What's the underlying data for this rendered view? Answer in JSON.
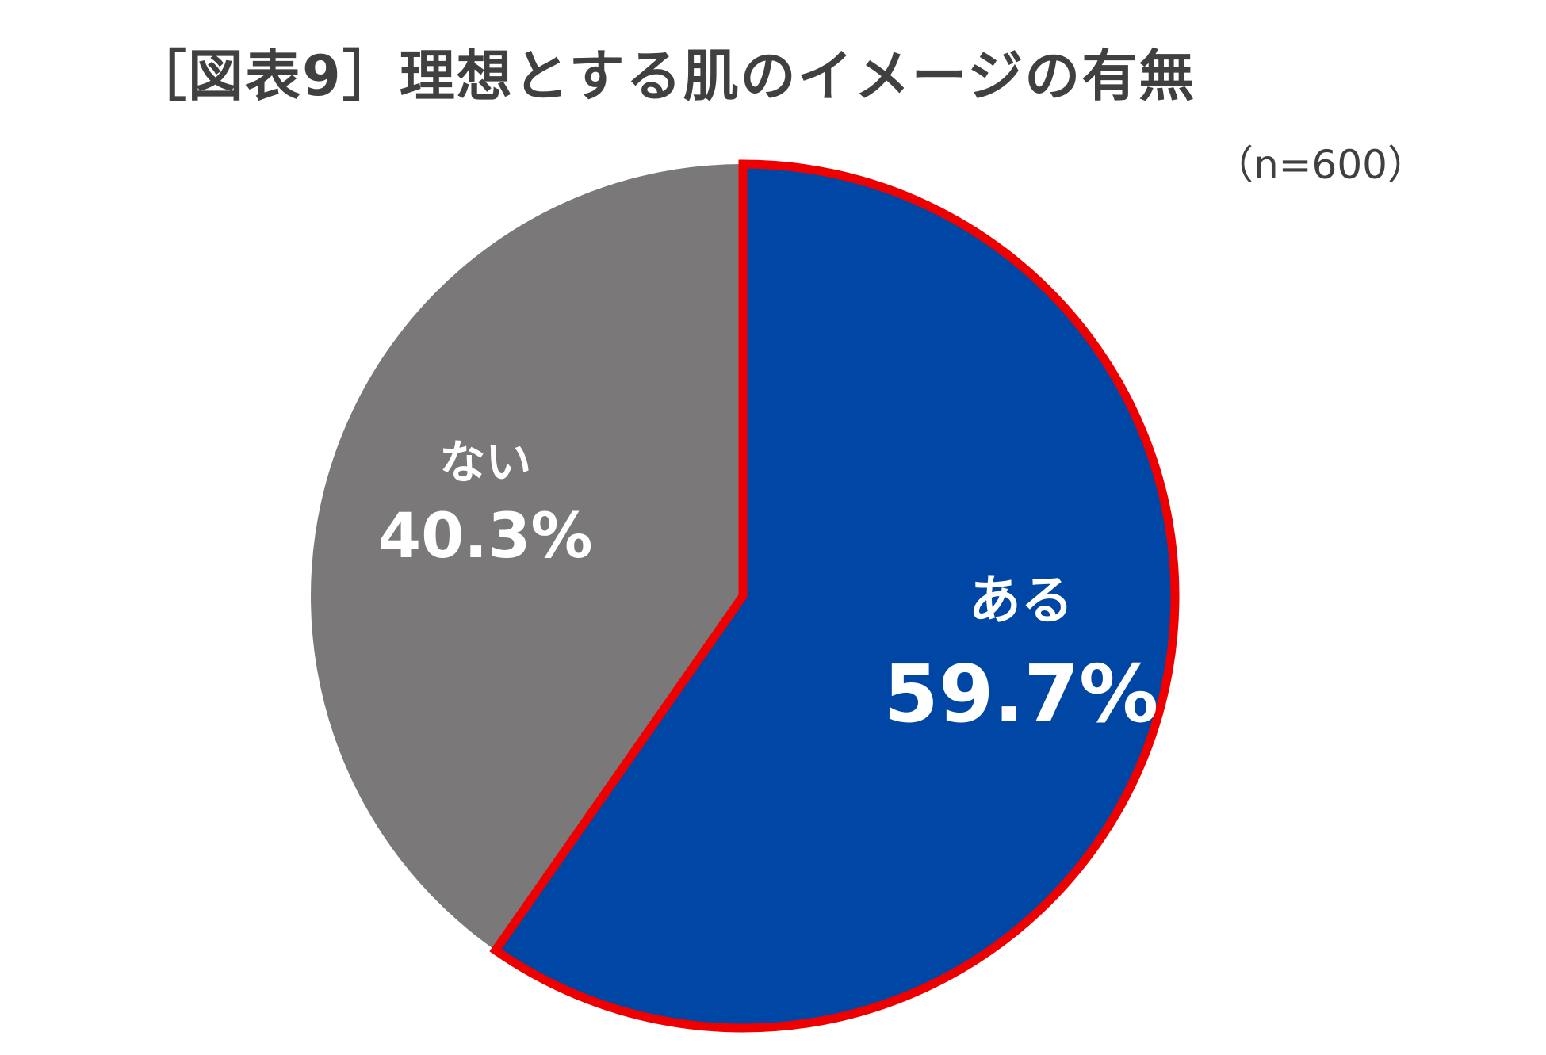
{
  "title": "［図表9］理想とする肌のイメージの有無",
  "sample_size": "（n=600）",
  "chart_data": {
    "type": "pie",
    "title": "［図表9］理想とする肌のイメージの有無",
    "note": "（n=600）",
    "slices": [
      {
        "label": "ある",
        "value": 59.7,
        "display": "59.7%",
        "color": "#0047A5",
        "highlight": true
      },
      {
        "label": "ない",
        "value": 40.3,
        "display": "40.3%",
        "color": "#7A7878",
        "highlight": false
      }
    ],
    "start_angle_deg": 0,
    "direction": "clockwise",
    "highlight_color": "#EE0000"
  }
}
